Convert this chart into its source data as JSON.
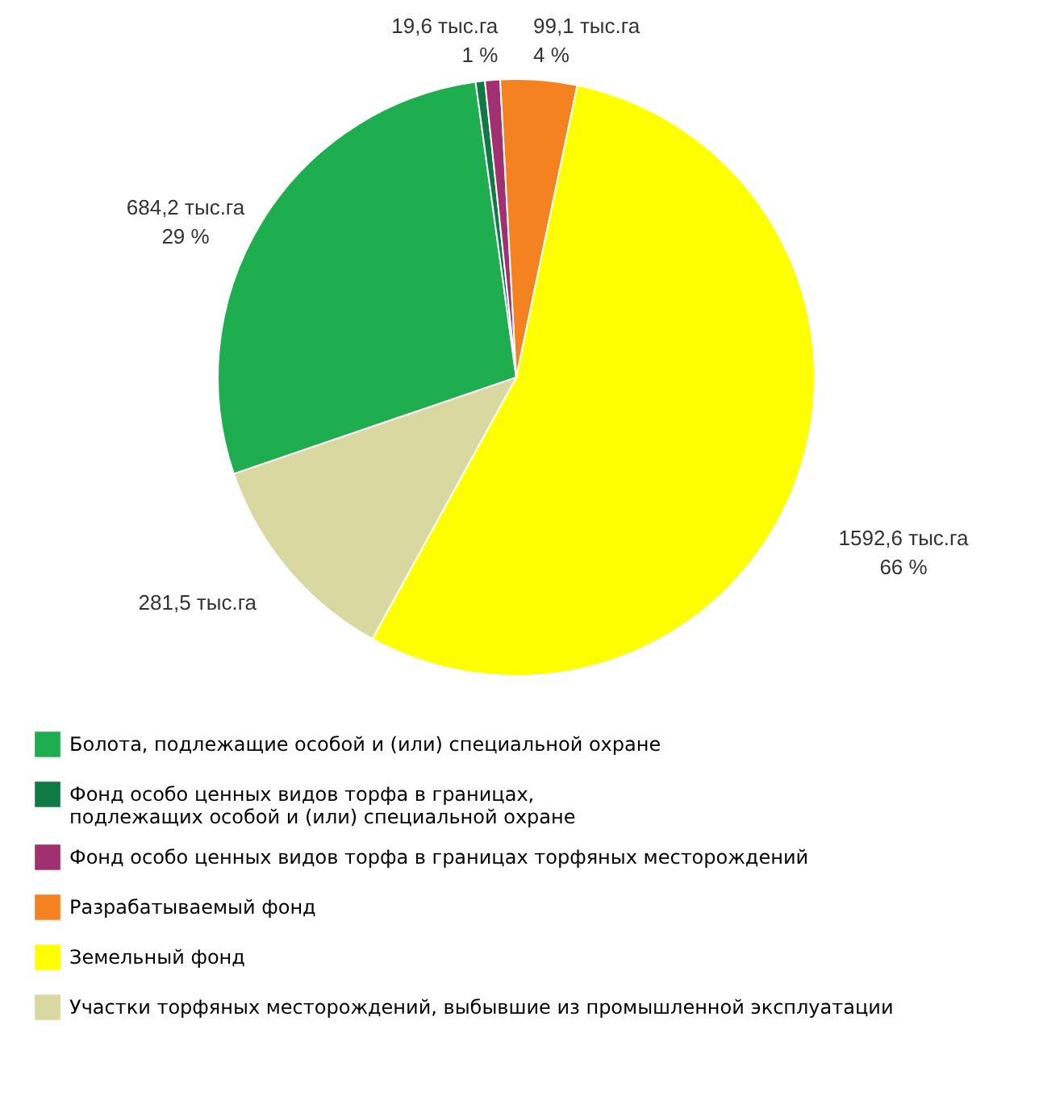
{
  "chart_data": {
    "type": "pie",
    "categories": [
      "Болота, подлежащие особой и (или) специальной охране",
      "Фонд особо ценных видов торфа в границах,\nподлежащих особой и (или) специальной охране",
      "Фонд особо ценных видов торфа в границах торфяных месторождений",
      "Разрабатываемый фонд",
      "Земельный фонд",
      "Участки торфяных месторождений, выбывшие из промышленной эксплуатации"
    ],
    "values": [
      672.2,
      12,
      19.6,
      99.1,
      1311.1,
      281.5
    ],
    "colors": [
      "#1fae4f",
      "#0f7a45",
      "#a0306f",
      "#f58220",
      "#ffff00",
      "#d8d8a0"
    ],
    "value_labels": [
      null,
      null,
      "19,6 тыс.га\n1 %",
      "99,1 тыс.га\n4 %",
      null,
      "281,5 тыс.га"
    ],
    "annotations": [
      "684,2 тыс.га\n29 %",
      "1592,6 тыс.га\n66 %"
    ],
    "legend": "bottom"
  }
}
